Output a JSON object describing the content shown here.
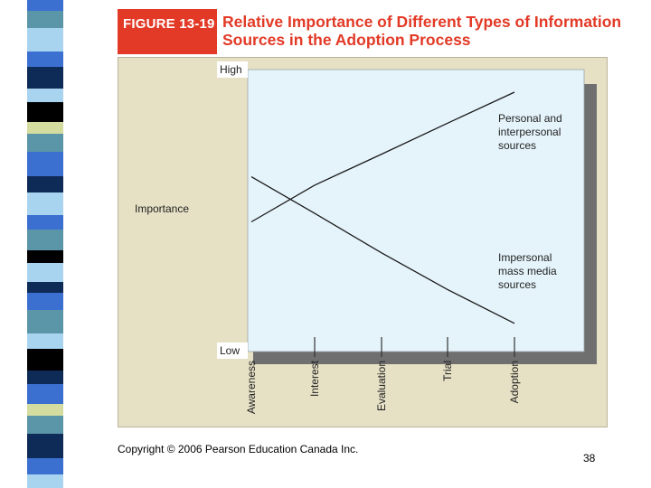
{
  "figure_label": "FIGURE 13-19",
  "title_line1": "Relative Importance of Different Types of Information",
  "title_line2": "Sources in the Adoption Process",
  "copyright": "Copyright © 2006 Pearson Education Canada Inc.",
  "page_number": "38",
  "colors": {
    "accent": "#e23a26",
    "panel": "#e6e1c5",
    "plot_bg": "#e5f4fb",
    "stripe_palette": [
      "#3b6fd0",
      "#5b95a8",
      "#a9d4f0",
      "#0e2a56",
      "#000000",
      "#d5dca0",
      "#ffffff"
    ]
  },
  "chart_data": {
    "type": "line",
    "title": "Relative Importance of Different Types of Information Sources in the Adoption Process",
    "ylabel": "Importance",
    "y_tick_labels": {
      "high": "High",
      "low": "Low"
    },
    "categories": [
      "Awareness",
      "Interest",
      "Evaluation",
      "Trial",
      "Adoption"
    ],
    "ylim": [
      0,
      100
    ],
    "grid": false,
    "series": [
      {
        "name_lines": [
          "Personal and",
          "interpersonal",
          "sources"
        ],
        "values": [
          46,
          59,
          70,
          81,
          92
        ]
      },
      {
        "name_lines": [
          "Impersonal",
          "mass media",
          "sources"
        ],
        "values": [
          62,
          49,
          35,
          22,
          10
        ]
      }
    ]
  }
}
